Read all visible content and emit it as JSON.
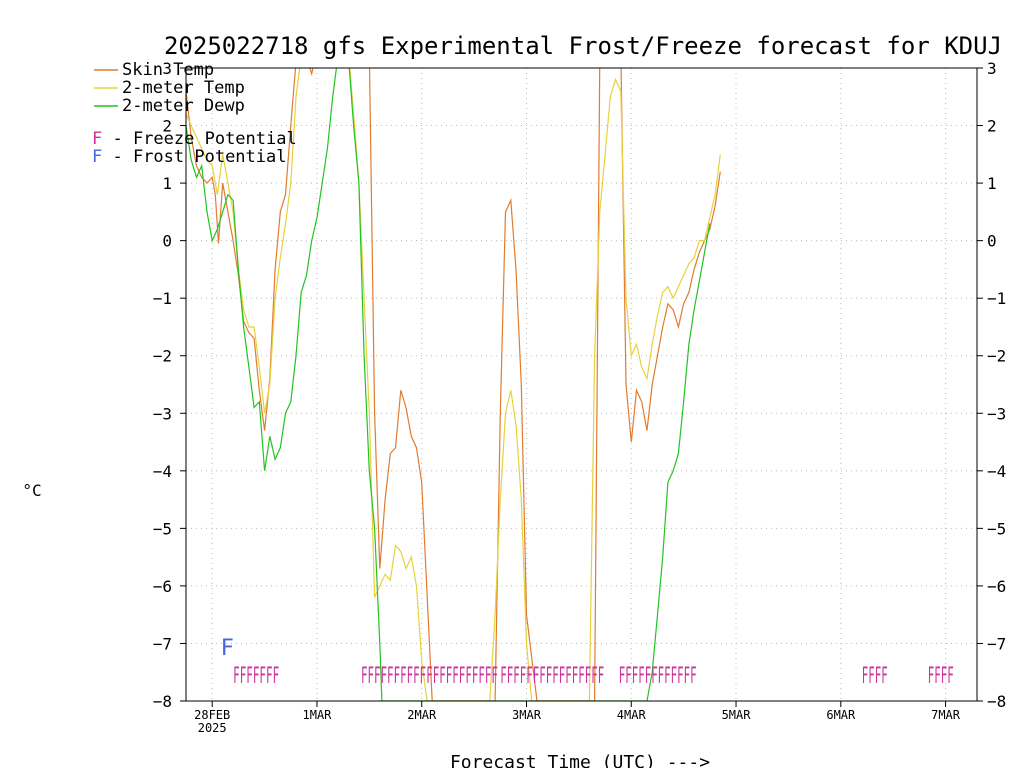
{
  "chart_data": {
    "type": "line",
    "title": "2025022718 gfs Experimental Frost/Freeze forecast for KDUJ",
    "xlabel": "Forecast Time (UTC) --->",
    "ylabel": "°C",
    "ylim": [
      -8,
      3
    ],
    "xlim": [
      -0.25,
      7.3
    ],
    "grid": true,
    "yticks": [
      -8,
      -7,
      -6,
      -5,
      -4,
      -3,
      -2,
      -1,
      0,
      1,
      2,
      3
    ],
    "x_unit": "days since 28FEB 00Z",
    "xticks": [
      {
        "x": 0,
        "label": "28FEB",
        "sub": "2025"
      },
      {
        "x": 1,
        "label": "1MAR",
        "sub": ""
      },
      {
        "x": 2,
        "label": "2MAR",
        "sub": ""
      },
      {
        "x": 3,
        "label": "3MAR",
        "sub": ""
      },
      {
        "x": 4,
        "label": "4MAR",
        "sub": ""
      },
      {
        "x": 5,
        "label": "5MAR",
        "sub": ""
      },
      {
        "x": 6,
        "label": "6MAR",
        "sub": ""
      },
      {
        "x": 7,
        "label": "7MAR",
        "sub": ""
      }
    ],
    "legend": {
      "placement": "top-left",
      "items": [
        {
          "label": "Skin Temp",
          "color": "#e07b30"
        },
        {
          "label": "2-meter Temp",
          "color": "#e6d23c"
        },
        {
          "label": "2-meter Dewp",
          "color": "#22c422"
        }
      ],
      "flags": [
        {
          "letter": "F",
          "text": " - Freeze Potential",
          "color": "#cc3399"
        },
        {
          "letter": "F",
          "text": " - Frost Potential",
          "color": "#4466dd"
        }
      ]
    },
    "series": [
      {
        "name": "Skin Temp",
        "color": "#e07b30",
        "points": [
          [
            -0.25,
            2.6
          ],
          [
            -0.2,
            1.8
          ],
          [
            -0.15,
            1.3
          ],
          [
            -0.1,
            1.1
          ],
          [
            -0.05,
            1.0
          ],
          [
            0.0,
            1.1
          ],
          [
            0.03,
            0.8
          ],
          [
            0.06,
            -0.05
          ],
          [
            0.1,
            1.0
          ],
          [
            0.15,
            0.5
          ],
          [
            0.2,
            0.0
          ],
          [
            0.25,
            -0.6
          ],
          [
            0.3,
            -1.4
          ],
          [
            0.35,
            -1.6
          ],
          [
            0.4,
            -1.7
          ],
          [
            0.45,
            -2.6
          ],
          [
            0.5,
            -3.3
          ],
          [
            0.55,
            -2.4
          ],
          [
            0.6,
            -0.5
          ],
          [
            0.65,
            0.5
          ],
          [
            0.7,
            0.8
          ],
          [
            0.75,
            2.0
          ],
          [
            0.8,
            3.1
          ],
          [
            0.9,
            3.2
          ],
          [
            0.95,
            2.9
          ],
          [
            1.0,
            3.3
          ],
          [
            1.5,
            3.3
          ],
          [
            1.55,
            -3.0
          ],
          [
            1.6,
            -5.7
          ],
          [
            1.65,
            -4.5
          ],
          [
            1.7,
            -3.7
          ],
          [
            1.75,
            -3.6
          ],
          [
            1.8,
            -2.6
          ],
          [
            1.85,
            -2.9
          ],
          [
            1.9,
            -3.4
          ],
          [
            1.95,
            -3.6
          ],
          [
            2.0,
            -4.2
          ],
          [
            2.1,
            -8.0
          ],
          [
            2.7,
            -8.0
          ],
          [
            2.75,
            -3.0
          ],
          [
            2.8,
            0.5
          ],
          [
            2.85,
            0.7
          ],
          [
            2.9,
            -0.5
          ],
          [
            2.95,
            -2.5
          ],
          [
            3.0,
            -6.5
          ],
          [
            3.1,
            -8.0
          ],
          [
            3.65,
            -8.0
          ],
          [
            3.7,
            3.2
          ],
          [
            3.9,
            3.3
          ],
          [
            3.95,
            -2.5
          ],
          [
            4.0,
            -3.5
          ],
          [
            4.05,
            -2.6
          ],
          [
            4.1,
            -2.8
          ],
          [
            4.15,
            -3.3
          ],
          [
            4.2,
            -2.5
          ],
          [
            4.25,
            -2.0
          ],
          [
            4.3,
            -1.5
          ],
          [
            4.35,
            -1.1
          ],
          [
            4.4,
            -1.2
          ],
          [
            4.45,
            -1.5
          ],
          [
            4.5,
            -1.1
          ],
          [
            4.55,
            -0.9
          ],
          [
            4.6,
            -0.5
          ],
          [
            4.65,
            -0.2
          ],
          [
            4.7,
            0.0
          ],
          [
            4.75,
            0.2
          ],
          [
            4.8,
            0.6
          ],
          [
            4.85,
            1.2
          ]
        ]
      },
      {
        "name": "2-meter Temp",
        "color": "#e6d23c",
        "points": [
          [
            -0.25,
            2.2
          ],
          [
            -0.2,
            2.0
          ],
          [
            -0.15,
            1.8
          ],
          [
            -0.1,
            1.6
          ],
          [
            -0.05,
            1.4
          ],
          [
            0.0,
            1.3
          ],
          [
            0.05,
            0.8
          ],
          [
            0.1,
            1.5
          ],
          [
            0.15,
            1.0
          ],
          [
            0.2,
            0.5
          ],
          [
            0.25,
            -0.5
          ],
          [
            0.3,
            -1.2
          ],
          [
            0.35,
            -1.5
          ],
          [
            0.4,
            -1.5
          ],
          [
            0.45,
            -2.2
          ],
          [
            0.5,
            -3.0
          ],
          [
            0.55,
            -2.5
          ],
          [
            0.6,
            -1.0
          ],
          [
            0.65,
            -0.3
          ],
          [
            0.7,
            0.3
          ],
          [
            0.75,
            1.0
          ],
          [
            0.8,
            2.5
          ],
          [
            0.85,
            3.2
          ],
          [
            1.0,
            3.3
          ],
          [
            1.3,
            3.3
          ],
          [
            1.35,
            2.2
          ],
          [
            1.4,
            1.0
          ],
          [
            1.45,
            -1.0
          ],
          [
            1.5,
            -3.0
          ],
          [
            1.55,
            -6.2
          ],
          [
            1.6,
            -6.0
          ],
          [
            1.65,
            -5.8
          ],
          [
            1.7,
            -5.9
          ],
          [
            1.75,
            -5.3
          ],
          [
            1.8,
            -5.4
          ],
          [
            1.85,
            -5.7
          ],
          [
            1.9,
            -5.5
          ],
          [
            1.95,
            -6.0
          ],
          [
            2.0,
            -7.3
          ],
          [
            2.05,
            -8.0
          ],
          [
            2.65,
            -8.0
          ],
          [
            2.7,
            -6.5
          ],
          [
            2.75,
            -4.5
          ],
          [
            2.8,
            -3.0
          ],
          [
            2.85,
            -2.6
          ],
          [
            2.9,
            -3.2
          ],
          [
            2.95,
            -4.5
          ],
          [
            3.0,
            -7.0
          ],
          [
            3.05,
            -8.0
          ],
          [
            3.6,
            -8.0
          ],
          [
            3.65,
            -2.0
          ],
          [
            3.7,
            0.5
          ],
          [
            3.75,
            1.5
          ],
          [
            3.8,
            2.5
          ],
          [
            3.85,
            2.8
          ],
          [
            3.9,
            2.6
          ],
          [
            3.95,
            -1.0
          ],
          [
            4.0,
            -2.0
          ],
          [
            4.05,
            -1.8
          ],
          [
            4.1,
            -2.2
          ],
          [
            4.15,
            -2.4
          ],
          [
            4.2,
            -1.8
          ],
          [
            4.25,
            -1.3
          ],
          [
            4.3,
            -0.9
          ],
          [
            4.35,
            -0.8
          ],
          [
            4.4,
            -1.0
          ],
          [
            4.45,
            -0.8
          ],
          [
            4.5,
            -0.6
          ],
          [
            4.55,
            -0.4
          ],
          [
            4.6,
            -0.3
          ],
          [
            4.65,
            0.0
          ],
          [
            4.7,
            0.0
          ],
          [
            4.75,
            0.4
          ],
          [
            4.8,
            0.8
          ],
          [
            4.85,
            1.5
          ]
        ]
      },
      {
        "name": "2-meter Dewp",
        "color": "#22c422",
        "points": [
          [
            -0.25,
            2.0
          ],
          [
            -0.2,
            1.4
          ],
          [
            -0.15,
            1.1
          ],
          [
            -0.1,
            1.3
          ],
          [
            -0.05,
            0.5
          ],
          [
            0.0,
            0.0
          ],
          [
            0.05,
            0.2
          ],
          [
            0.1,
            0.5
          ],
          [
            0.15,
            0.8
          ],
          [
            0.2,
            0.7
          ],
          [
            0.25,
            -0.5
          ],
          [
            0.3,
            -1.5
          ],
          [
            0.35,
            -2.2
          ],
          [
            0.4,
            -2.9
          ],
          [
            0.45,
            -2.8
          ],
          [
            0.5,
            -4.0
          ],
          [
            0.55,
            -3.4
          ],
          [
            0.6,
            -3.8
          ],
          [
            0.65,
            -3.6
          ],
          [
            0.7,
            -3.0
          ],
          [
            0.75,
            -2.8
          ],
          [
            0.8,
            -2.0
          ],
          [
            0.85,
            -0.9
          ],
          [
            0.9,
            -0.6
          ],
          [
            0.95,
            0.0
          ],
          [
            1.0,
            0.4
          ],
          [
            1.05,
            1.0
          ],
          [
            1.1,
            1.6
          ],
          [
            1.15,
            2.5
          ],
          [
            1.2,
            3.2
          ],
          [
            1.3,
            3.2
          ],
          [
            1.35,
            2.0
          ],
          [
            1.4,
            1.0
          ],
          [
            1.45,
            -2.0
          ],
          [
            1.5,
            -4.0
          ],
          [
            1.55,
            -5.0
          ],
          [
            1.6,
            -7.0
          ],
          [
            1.62,
            -8.0
          ],
          [
            4.15,
            -8.0
          ],
          [
            4.2,
            -7.5
          ],
          [
            4.25,
            -6.5
          ],
          [
            4.3,
            -5.5
          ],
          [
            4.35,
            -4.2
          ],
          [
            4.4,
            -4.0
          ],
          [
            4.45,
            -3.7
          ],
          [
            4.5,
            -2.8
          ],
          [
            4.55,
            -1.8
          ],
          [
            4.6,
            -1.2
          ],
          [
            4.65,
            -0.7
          ],
          [
            4.7,
            -0.2
          ],
          [
            4.75,
            0.3
          ]
        ]
      }
    ],
    "frost_marks": [
      {
        "x": 0.08,
        "y": -7.2,
        "text": "F",
        "color": "#4466dd"
      }
    ],
    "freeze_marks": [
      {
        "x": 0.2,
        "y": -7.55,
        "text": "FFFFFFF",
        "color": "#cc3399"
      },
      {
        "x": 1.42,
        "y": -7.55,
        "text": "FFFFFFFFFFFFFFFFFFFFF",
        "color": "#cc3399"
      },
      {
        "x": 2.75,
        "y": -7.55,
        "text": "FFFFFFFFFFFFFFFF",
        "color": "#cc3399"
      },
      {
        "x": 3.88,
        "y": -7.55,
        "text": "FFFFFFFFFFFF",
        "color": "#cc3399"
      },
      {
        "x": 6.2,
        "y": -7.55,
        "text": "FFFF",
        "color": "#cc3399"
      },
      {
        "x": 6.83,
        "y": -7.55,
        "text": "FFFF",
        "color": "#cc3399"
      }
    ]
  }
}
